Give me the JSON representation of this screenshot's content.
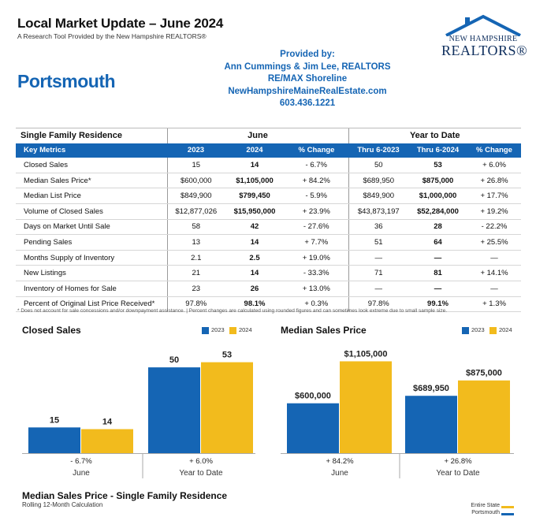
{
  "header": {
    "title": "Local Market Update – June 2024",
    "subtitle": "A Research Tool Provided by the New Hampshire REALTORS®",
    "city": "Portsmouth",
    "provided_by": [
      "Provided by:",
      "Ann Cummings & Jim Lee, REALTORS",
      "RE/MAX Shoreline",
      "NewHampshireMaineRealEstate.com",
      "603.436.1221"
    ],
    "logo_line1": "NEW HAMPSHIRE",
    "logo_line2": "REALTORS®"
  },
  "table": {
    "section": "Single Family Residence",
    "group_june": "June",
    "group_ytd": "Year to Date",
    "columns": [
      "Key Metrics",
      "2023",
      "2024",
      "% Change",
      "Thru 6-2023",
      "Thru 6-2024",
      "% Change"
    ],
    "rows": [
      [
        "Closed Sales",
        "15",
        "14",
        "- 6.7%",
        "50",
        "53",
        "+ 6.0%"
      ],
      [
        "Median Sales Price*",
        "$600,000",
        "$1,105,000",
        "+ 84.2%",
        "$689,950",
        "$875,000",
        "+ 26.8%"
      ],
      [
        "Median List Price",
        "$849,900",
        "$799,450",
        "- 5.9%",
        "$849,900",
        "$1,000,000",
        "+ 17.7%"
      ],
      [
        "Volume of Closed Sales",
        "$12,877,026",
        "$15,950,000",
        "+ 23.9%",
        "$43,873,197",
        "$52,284,000",
        "+ 19.2%"
      ],
      [
        "Days on Market Until Sale",
        "58",
        "42",
        "- 27.6%",
        "36",
        "28",
        "- 22.2%"
      ],
      [
        "Pending Sales",
        "13",
        "14",
        "+ 7.7%",
        "51",
        "64",
        "+ 25.5%"
      ],
      [
        "Months Supply of Inventory",
        "2.1",
        "2.5",
        "+ 19.0%",
        "—",
        "—",
        "—"
      ],
      [
        "New Listings",
        "21",
        "14",
        "- 33.3%",
        "71",
        "81",
        "+ 14.1%"
      ],
      [
        "Inventory of Homes for Sale",
        "23",
        "26",
        "+ 13.0%",
        "—",
        "—",
        "—"
      ],
      [
        "Percent of Original List Price Received*",
        "97.8%",
        "98.1%",
        "+ 0.3%",
        "97.8%",
        "99.1%",
        "+ 1.3%"
      ]
    ],
    "footnote": "* Does not account for sale concessions and/or downpayment assistance.  |  Percent changes are calculated using rounded figures and can sometimes look extreme due to small sample size."
  },
  "colors": {
    "blue": "#1565b4",
    "gold": "#f2bb1d"
  },
  "chart_data": [
    {
      "type": "bar",
      "title": "Closed Sales",
      "categories": [
        "June",
        "Year to Date"
      ],
      "series": [
        {
          "name": "2023",
          "values": [
            15,
            50
          ]
        },
        {
          "name": "2024",
          "values": [
            14,
            53
          ]
        }
      ],
      "value_labels": [
        [
          "15",
          "50"
        ],
        [
          "14",
          "53"
        ]
      ],
      "changes": [
        "- 6.7%",
        "+ 6.0%"
      ],
      "ylim": [
        0,
        62
      ],
      "legend": "top-right"
    },
    {
      "type": "bar",
      "title": "Median Sales Price",
      "categories": [
        "June",
        "Year to Date"
      ],
      "series": [
        {
          "name": "2023",
          "values": [
            600000,
            689950
          ]
        },
        {
          "name": "2024",
          "values": [
            1105000,
            875000
          ]
        }
      ],
      "value_labels": [
        [
          "$600,000",
          "$689,950"
        ],
        [
          "$1,105,000",
          "$875,000"
        ]
      ],
      "changes": [
        "+ 84.2%",
        "+ 26.8%"
      ],
      "ylim": [
        0,
        1280000
      ],
      "legend": "top-right"
    }
  ],
  "bottom": {
    "title": "Median Sales Price - Single Family Residence",
    "subtitle": "Rolling 12-Month Calculation",
    "legend": [
      {
        "label": "Entire State",
        "color": "#f2bb1d"
      },
      {
        "label": "Portsmouth",
        "color": "#1565b4"
      }
    ]
  }
}
